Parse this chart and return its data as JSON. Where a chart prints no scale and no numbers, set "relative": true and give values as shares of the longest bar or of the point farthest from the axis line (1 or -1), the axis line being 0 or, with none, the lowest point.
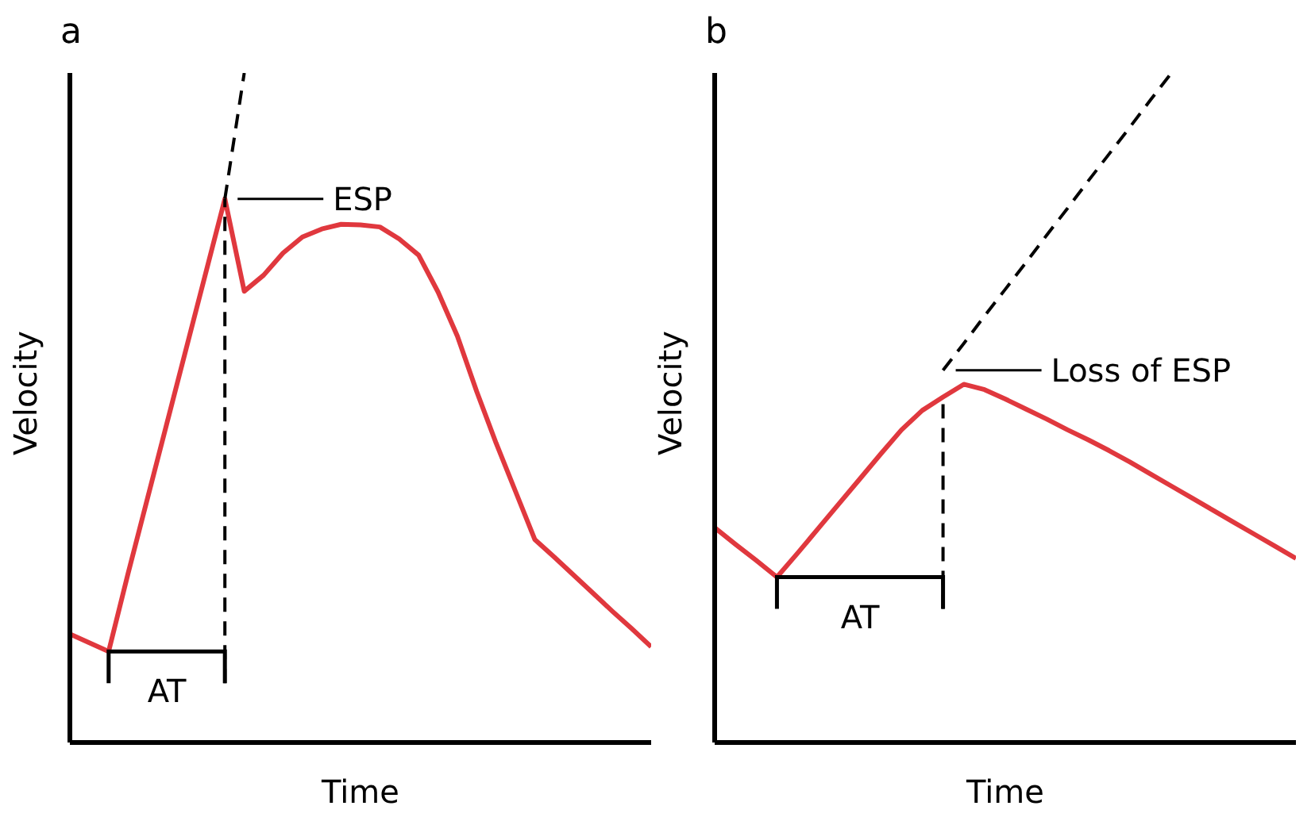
{
  "chart_data": [
    {
      "type": "line",
      "title": "a",
      "xlabel": "Time",
      "ylabel": "Velocity",
      "relative": true,
      "tick_labels": false,
      "categories": [
        null,
        null,
        null,
        null,
        null,
        null,
        null,
        null,
        null,
        null,
        null,
        null,
        null,
        null,
        null,
        null,
        null,
        null,
        null,
        null,
        null,
        null,
        null,
        null,
        null,
        null,
        null,
        null,
        null,
        null,
        null
      ],
      "series": [
        {
          "color": "#e0383e",
          "values": [
            0.162,
            0.149,
            0.136,
            0.252,
            0.364,
            0.476,
            0.588,
            0.7,
            0.812,
            0.674,
            0.698,
            0.731,
            0.755,
            0.767,
            0.774,
            0.773,
            0.77,
            0.752,
            0.728,
            0.673,
            0.607,
            0.524,
            0.447,
            0.375,
            0.303,
            0.277,
            0.25,
            0.223,
            0.196,
            0.17,
            0.143
          ]
        },
        {
          "color": "#000000",
          "line_style": "dashed",
          "values": [
            null,
            null,
            null,
            null,
            null,
            null,
            null,
            null,
            0.812,
            1.0,
            null,
            null,
            null,
            null,
            null,
            null,
            null,
            null,
            null,
            null,
            null,
            null,
            null,
            null,
            null,
            null,
            null,
            null,
            null,
            null,
            null
          ]
        }
      ],
      "annotations": [
        "ESP",
        "AT"
      ]
    },
    {
      "type": "line",
      "title": "b",
      "xlabel": "Time",
      "ylabel": "Velocity",
      "relative": true,
      "tick_labels": false,
      "categories": [
        null,
        null,
        null,
        null,
        null,
        null,
        null,
        null,
        null,
        null,
        null,
        null,
        null,
        null,
        null,
        null,
        null,
        null,
        null,
        null,
        null,
        null,
        null,
        null,
        null,
        null,
        null,
        null,
        null
      ],
      "series": [
        {
          "color": "#e0383e",
          "values": [
            0.321,
            0.296,
            0.272,
            0.247,
            0.283,
            0.32,
            0.357,
            0.394,
            0.431,
            0.467,
            0.496,
            0.516,
            0.535,
            0.527,
            0.513,
            0.498,
            0.483,
            0.467,
            0.452,
            0.436,
            0.419,
            0.401,
            0.383,
            0.365,
            0.347,
            0.329,
            0.311,
            0.293,
            0.275
          ]
        },
        {
          "color": "#000000",
          "line_style": "dashed",
          "values": [
            null,
            null,
            null,
            null,
            null,
            null,
            null,
            null,
            null,
            null,
            null,
            0.556,
            0.596,
            0.637,
            0.677,
            0.717,
            0.758,
            0.798,
            0.839,
            0.879,
            0.919,
            0.96,
            1.0,
            null,
            null,
            null,
            null,
            null,
            null
          ]
        }
      ],
      "annotations": [
        "Loss of ESP",
        "AT"
      ]
    }
  ]
}
